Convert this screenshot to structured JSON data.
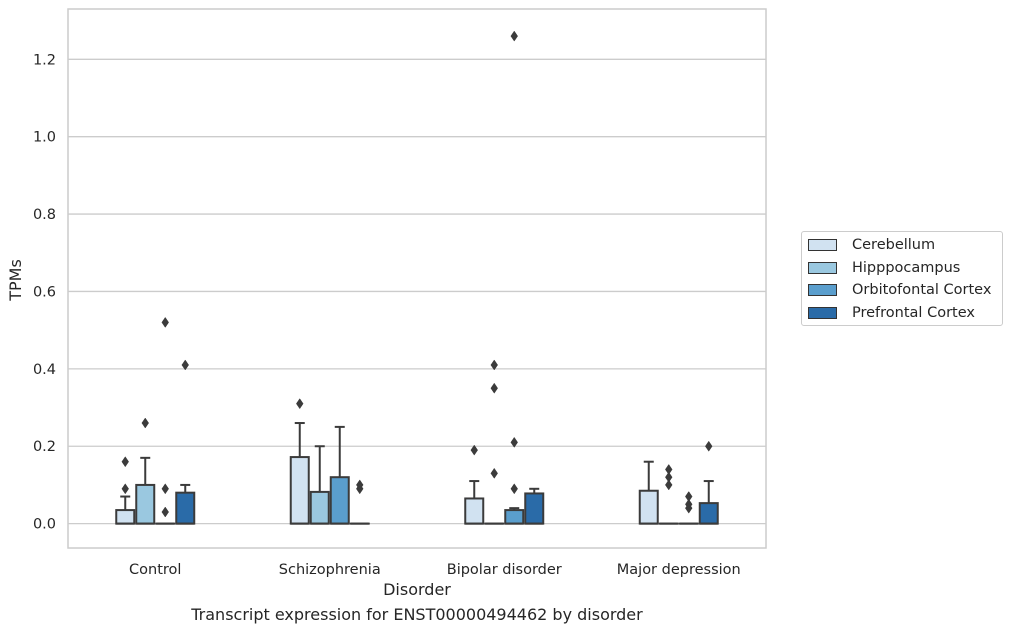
{
  "chart_data": {
    "type": "box",
    "xlabel": "Disorder",
    "ylabel": "TPMs",
    "categories": [
      "Control",
      "Schizophrenia",
      "Bipolar disorder",
      "Major depression"
    ],
    "ylim": [
      -0.063,
      1.33
    ],
    "yticks": [
      0.0,
      0.2,
      0.4,
      0.6,
      0.8,
      1.0,
      1.2
    ],
    "ytick_labels": [
      "0.0",
      "0.2",
      "0.4",
      "0.6",
      "0.8",
      "1.0",
      "1.2"
    ],
    "grid": true,
    "legend_position": "right",
    "series": [
      {
        "name": "Cerebellum",
        "color": "#d1e2f1",
        "boxes": [
          {
            "q1": 0.0,
            "median": 0.0,
            "q3": 0.035,
            "whisker_low": 0.0,
            "whisker_high": 0.07,
            "outliers": [
              0.09,
              0.16
            ]
          },
          {
            "q1": 0.0,
            "median": 0.0,
            "q3": 0.172,
            "whisker_low": 0.0,
            "whisker_high": 0.26,
            "outliers": [
              0.31
            ]
          },
          {
            "q1": 0.0,
            "median": 0.0,
            "q3": 0.065,
            "whisker_low": 0.0,
            "whisker_high": 0.11,
            "outliers": [
              0.19
            ]
          },
          {
            "q1": 0.0,
            "median": 0.0,
            "q3": 0.085,
            "whisker_low": 0.0,
            "whisker_high": 0.16,
            "outliers": []
          }
        ]
      },
      {
        "name": "Hipppocampus",
        "color": "#9ac8e0",
        "boxes": [
          {
            "q1": 0.0,
            "median": 0.0,
            "q3": 0.1,
            "whisker_low": 0.0,
            "whisker_high": 0.17,
            "outliers": [
              0.26
            ]
          },
          {
            "q1": 0.0,
            "median": 0.0,
            "q3": 0.082,
            "whisker_low": 0.0,
            "whisker_high": 0.2,
            "outliers": []
          },
          {
            "q1": 0.0,
            "median": 0.0,
            "q3": 0.0,
            "whisker_low": 0.0,
            "whisker_high": 0.0,
            "outliers": [
              0.13,
              0.35,
              0.41
            ]
          },
          {
            "q1": 0.0,
            "median": 0.0,
            "q3": 0.0,
            "whisker_low": 0.0,
            "whisker_high": 0.0,
            "outliers": [
              0.1,
              0.12,
              0.14
            ]
          }
        ]
      },
      {
        "name": "Orbitofontal Cortex",
        "color": "#5a9ecd",
        "boxes": [
          {
            "q1": 0.0,
            "median": 0.0,
            "q3": 0.0,
            "whisker_low": 0.0,
            "whisker_high": 0.0,
            "outliers": [
              0.03,
              0.09,
              0.52
            ]
          },
          {
            "q1": 0.0,
            "median": 0.0,
            "q3": 0.12,
            "whisker_low": 0.0,
            "whisker_high": 0.25,
            "outliers": []
          },
          {
            "q1": 0.0,
            "median": 0.0,
            "q3": 0.035,
            "whisker_low": 0.0,
            "whisker_high": 0.04,
            "outliers": [
              0.09,
              0.21,
              1.26
            ]
          },
          {
            "q1": 0.0,
            "median": 0.0,
            "q3": 0.0,
            "whisker_low": 0.0,
            "whisker_high": 0.0,
            "outliers": [
              0.04,
              0.05,
              0.07
            ]
          }
        ]
      },
      {
        "name": "Prefrontal Cortex",
        "color": "#2a6ba8",
        "boxes": [
          {
            "q1": 0.0,
            "median": 0.0,
            "q3": 0.08,
            "whisker_low": 0.0,
            "whisker_high": 0.1,
            "outliers": [
              0.41
            ]
          },
          {
            "q1": 0.0,
            "median": 0.0,
            "q3": 0.0,
            "whisker_low": 0.0,
            "whisker_high": 0.0,
            "outliers": [
              0.09,
              0.1
            ]
          },
          {
            "q1": 0.0,
            "median": 0.0,
            "q3": 0.078,
            "whisker_low": 0.0,
            "whisker_high": 0.09,
            "outliers": []
          },
          {
            "q1": 0.0,
            "median": 0.0,
            "q3": 0.053,
            "whisker_low": 0.0,
            "whisker_high": 0.11,
            "outliers": [
              0.2
            ]
          }
        ]
      }
    ],
    "caption": "Transcript expression for ENST00000494462 by disorder"
  }
}
